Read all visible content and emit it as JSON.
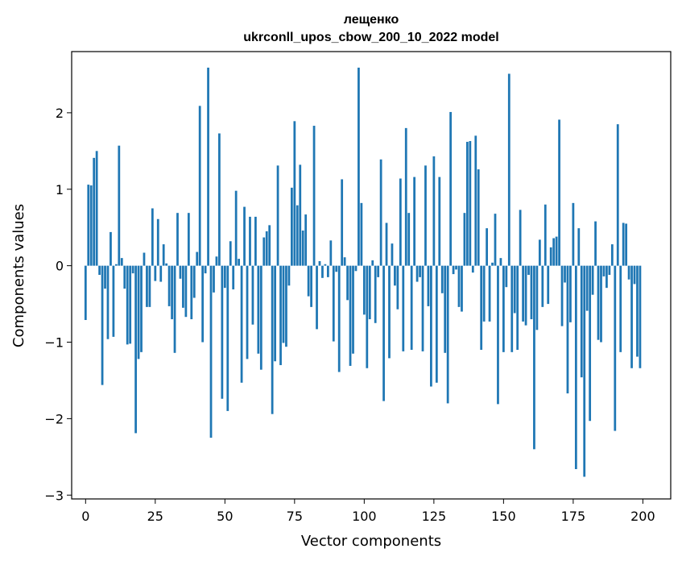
{
  "chart_data": {
    "type": "bar",
    "title_line1": "лещенко",
    "title_line2": "ukrconll_upos_cbow_200_10_2022 model",
    "xlabel": "Vector components",
    "ylabel": "Components values",
    "xlim": [
      -5,
      210
    ],
    "ylim": [
      -3.05,
      2.8
    ],
    "xticks": [
      0,
      25,
      50,
      75,
      100,
      125,
      150,
      175,
      200
    ],
    "yticks": [
      -3,
      -2,
      -1,
      0,
      1,
      2
    ],
    "ytick_labels": [
      "−3",
      "−2",
      "−1",
      "0",
      "1",
      "2"
    ],
    "bar_color": "#1f77b4",
    "x": [
      0,
      1,
      2,
      3,
      4,
      5,
      6,
      7,
      8,
      9,
      10,
      11,
      12,
      13,
      14,
      15,
      16,
      17,
      18,
      19,
      20,
      21,
      22,
      23,
      24,
      25,
      26,
      27,
      28,
      29,
      30,
      31,
      32,
      33,
      34,
      35,
      36,
      37,
      38,
      39,
      40,
      41,
      42,
      43,
      44,
      45,
      46,
      47,
      48,
      49,
      50,
      51,
      52,
      53,
      54,
      55,
      56,
      57,
      58,
      59,
      60,
      61,
      62,
      63,
      64,
      65,
      66,
      67,
      68,
      69,
      70,
      71,
      72,
      73,
      74,
      75,
      76,
      77,
      78,
      79,
      80,
      81,
      82,
      83,
      84,
      85,
      86,
      87,
      88,
      89,
      90,
      91,
      92,
      93,
      94,
      95,
      96,
      97,
      98,
      99,
      100,
      101,
      102,
      103,
      104,
      105,
      106,
      107,
      108,
      109,
      110,
      111,
      112,
      113,
      114,
      115,
      116,
      117,
      118,
      119,
      120,
      121,
      122,
      123,
      124,
      125,
      126,
      127,
      128,
      129,
      130,
      131,
      132,
      133,
      134,
      135,
      136,
      137,
      138,
      139,
      140,
      141,
      142,
      143,
      144,
      145,
      146,
      147,
      148,
      149,
      150,
      151,
      152,
      153,
      154,
      155,
      156,
      157,
      158,
      159,
      160,
      161,
      162,
      163,
      164,
      165,
      166,
      167,
      168,
      169,
      170,
      171,
      172,
      173,
      174,
      175,
      176,
      177,
      178,
      179,
      180,
      181,
      182,
      183,
      184,
      185,
      186,
      187,
      188,
      189,
      190,
      191,
      192,
      193,
      194,
      195,
      196,
      197,
      198,
      199
    ],
    "values": [
      -0.71,
      1.06,
      1.05,
      1.41,
      1.5,
      -0.12,
      -1.56,
      -0.3,
      -0.96,
      0.44,
      -0.93,
      0.02,
      1.57,
      0.1,
      -0.3,
      -1.03,
      -1.02,
      -0.1,
      -2.19,
      -1.22,
      -1.13,
      0.17,
      -0.54,
      -0.54,
      0.75,
      -0.2,
      0.61,
      -0.21,
      0.28,
      0.03,
      -0.53,
      -0.7,
      -1.14,
      0.69,
      -0.17,
      -0.55,
      -0.67,
      0.69,
      -0.7,
      -0.42,
      0.18,
      2.09,
      -1.0,
      -0.1,
      2.59,
      -2.25,
      -0.35,
      0.12,
      1.73,
      -1.74,
      -0.29,
      -1.9,
      0.32,
      -0.31,
      0.98,
      0.09,
      -1.53,
      0.77,
      -1.22,
      0.64,
      -0.77,
      0.64,
      -1.15,
      -1.36,
      0.37,
      0.45,
      0.53,
      -1.94,
      -1.25,
      1.31,
      -1.3,
      -1.01,
      -1.06,
      -0.26,
      1.02,
      1.89,
      0.79,
      1.32,
      0.46,
      0.67,
      -0.4,
      -0.54,
      1.83,
      -0.83,
      0.06,
      -0.16,
      0.02,
      -0.15,
      0.33,
      -0.99,
      -0.08,
      -1.39,
      1.13,
      0.11,
      -0.45,
      -1.31,
      -1.15,
      -0.07,
      2.59,
      0.82,
      -0.64,
      -1.34,
      -0.7,
      0.07,
      -0.75,
      -0.15,
      1.39,
      -1.77,
      0.56,
      -1.21,
      0.29,
      -0.26,
      -0.57,
      1.14,
      -1.12,
      1.8,
      0.69,
      -1.1,
      1.16,
      -0.21,
      -0.15,
      -1.12,
      1.31,
      -0.53,
      -1.58,
      1.43,
      -1.53,
      1.16,
      -0.36,
      -1.14,
      -1.8,
      2.01,
      -0.11,
      -0.05,
      -0.54,
      -0.6,
      0.69,
      1.62,
      1.63,
      -0.09,
      1.7,
      1.26,
      -1.1,
      -0.73,
      0.49,
      -0.73,
      0.04,
      0.68,
      -1.81,
      0.1,
      -1.13,
      -0.28,
      2.51,
      -1.13,
      -0.62,
      -1.1,
      0.73,
      -0.73,
      -0.78,
      -0.12,
      -0.7,
      -2.4,
      -0.84,
      0.34,
      -0.54,
      0.8,
      -0.5,
      0.24,
      0.36,
      0.38,
      1.91,
      -0.79,
      -0.22,
      -1.67,
      -0.74,
      0.82,
      -2.66,
      0.49,
      -1.46,
      -2.76,
      -0.59,
      -2.03,
      -0.38,
      0.58,
      -0.97,
      -1.0,
      -0.14,
      -0.29,
      -0.12,
      0.28,
      -2.16,
      1.85,
      -1.13,
      0.56,
      0.55,
      -0.18,
      -1.34,
      -0.24,
      -1.19,
      -1.34
    ]
  }
}
